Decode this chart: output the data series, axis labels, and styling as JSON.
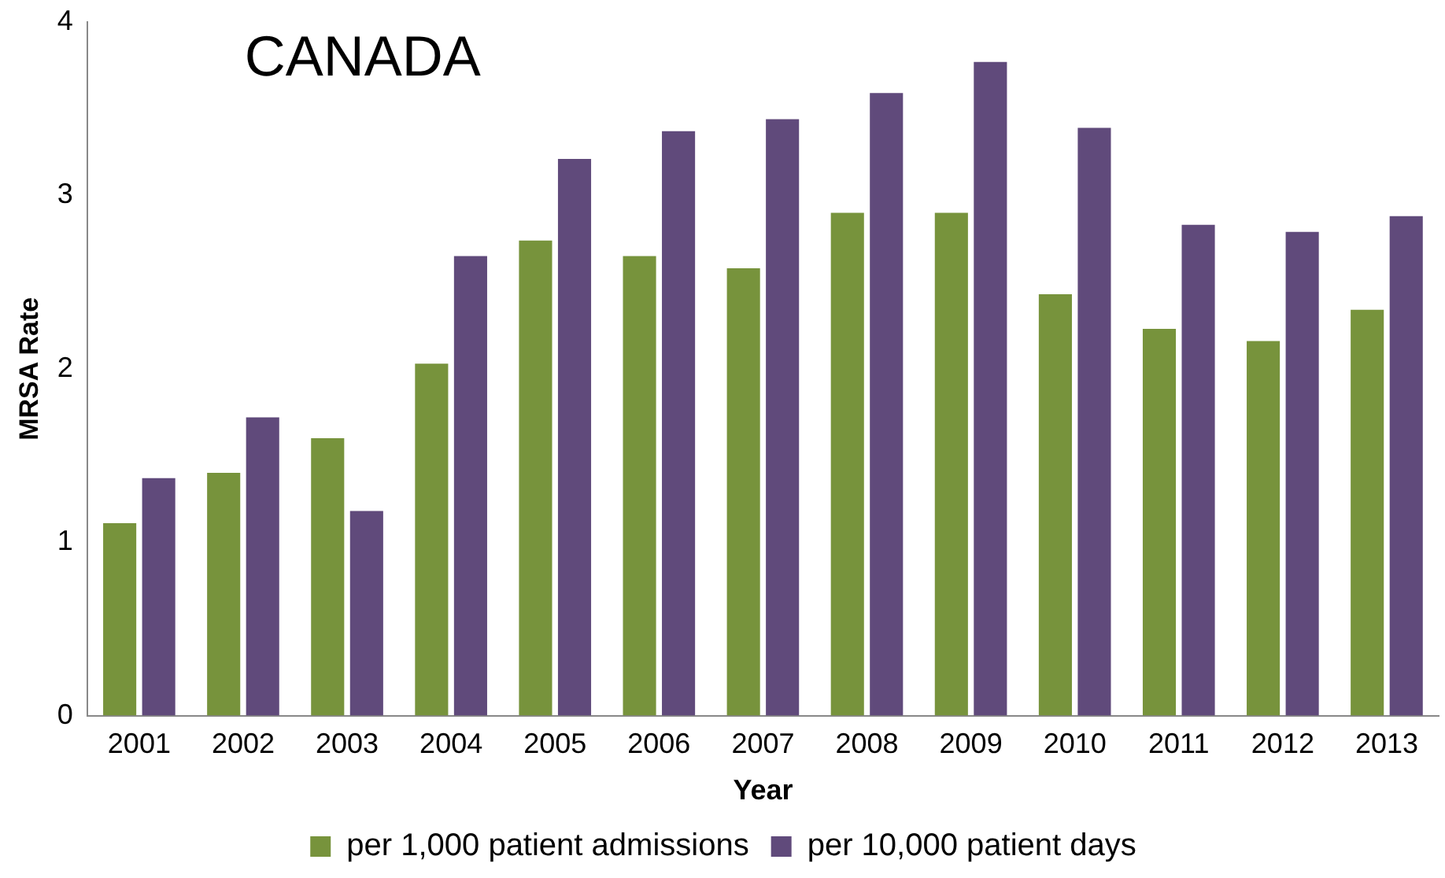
{
  "chart_data": {
    "type": "bar",
    "title": "CANADA",
    "xlabel": "Year",
    "ylabel": "MRSA Rate",
    "categories": [
      "2001",
      "2002",
      "2003",
      "2004",
      "2005",
      "2006",
      "2007",
      "2008",
      "2009",
      "2010",
      "2011",
      "2012",
      "2013"
    ],
    "series": [
      {
        "name": "per 1,000 patient admissions",
        "color": "#77933c",
        "values": [
          1.11,
          1.4,
          1.6,
          2.03,
          2.74,
          2.65,
          2.58,
          2.9,
          2.9,
          2.43,
          2.23,
          2.16,
          2.34
        ]
      },
      {
        "name": "per 10,000 patient days",
        "color": "#604a7b",
        "values": [
          1.37,
          1.72,
          1.18,
          2.65,
          3.21,
          3.37,
          3.44,
          3.59,
          3.77,
          3.39,
          2.83,
          2.79,
          2.88
        ]
      }
    ],
    "ylim": [
      0,
      4
    ],
    "yticks": [
      0,
      1,
      2,
      3,
      4
    ],
    "grid": false,
    "legend": "bottom"
  }
}
